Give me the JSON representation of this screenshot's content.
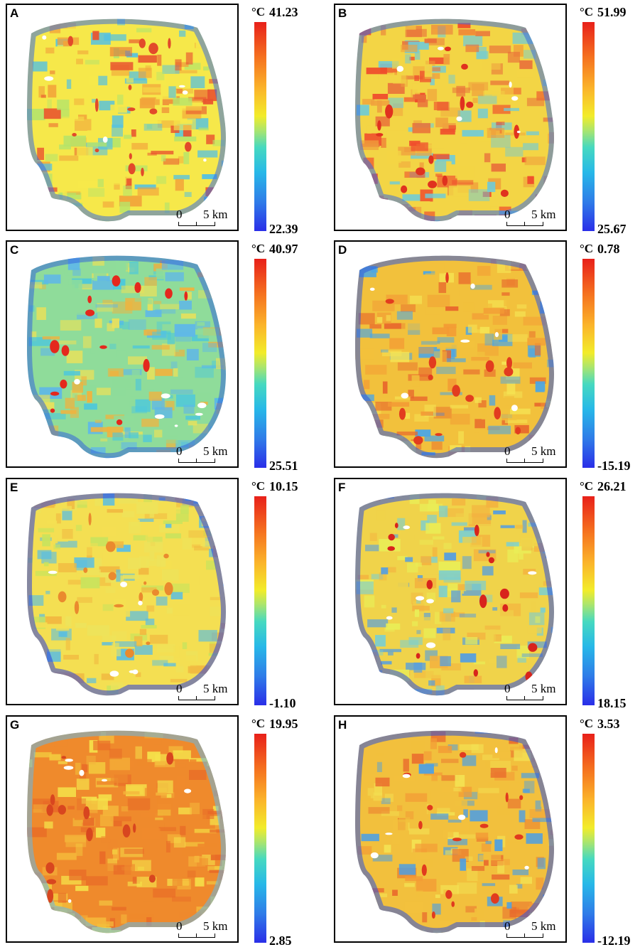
{
  "panels": [
    {
      "letter": "A",
      "unit": "°C",
      "max": "41.23",
      "min": "22.39",
      "scale_zero": "0",
      "scale_km": "5 km",
      "palette": [
        "#f6e84a",
        "#b6e46a",
        "#4fc0e6",
        "#f2a23a",
        "#e9552f"
      ],
      "cold_edge": "#3a6ee0",
      "hot_spot": "#e24a2a"
    },
    {
      "letter": "B",
      "unit": "°C",
      "max": "51.99",
      "min": "25.67",
      "scale_zero": "0",
      "scale_km": "5 km",
      "palette": [
        "#f3d545",
        "#f0a23c",
        "#6fcbd8",
        "#e9703a",
        "#ef4a2c"
      ],
      "cold_edge": "#3a6ee0",
      "hot_spot": "#e0321f"
    },
    {
      "letter": "C",
      "unit": "°C",
      "max": "40.97",
      "min": "25.51",
      "scale_zero": "0",
      "scale_km": "5 km",
      "palette": [
        "#8fdc9a",
        "#4cc7dc",
        "#e9e15a",
        "#5fb7e8",
        "#f2b23c"
      ],
      "cold_edge": "#3566dd",
      "hot_spot": "#e4281d"
    },
    {
      "letter": "D",
      "unit": "°C",
      "max": "0.78",
      "min": "-15.19",
      "scale_zero": "0",
      "scale_km": "5 km",
      "palette": [
        "#f2c13c",
        "#f39a34",
        "#4aa6e6",
        "#f5e353",
        "#e8672c"
      ],
      "cold_edge": "#2f58dc",
      "hot_spot": "#e23c1f"
    },
    {
      "letter": "E",
      "unit": "°C",
      "max": "10.15",
      "min": "-1.10",
      "scale_zero": "0",
      "scale_km": "5 km",
      "palette": [
        "#f4df52",
        "#c9e35c",
        "#58bde4",
        "#f1b840",
        "#ede35b"
      ],
      "cold_edge": "#2a3ee0",
      "hot_spot": "#ea8a2e"
    },
    {
      "letter": "F",
      "unit": "°C",
      "max": "26.21",
      "min": "18.15",
      "scale_zero": "0",
      "scale_km": "5 km",
      "palette": [
        "#f0d34a",
        "#4f9ce6",
        "#f3b33f",
        "#7ccfcf",
        "#e9ee57"
      ],
      "cold_edge": "#2c4fe0",
      "hot_spot": "#d8241c"
    },
    {
      "letter": "G",
      "unit": "°C",
      "max": "19.95",
      "min": "2.85",
      "scale_zero": "0",
      "scale_km": "5 km",
      "palette": [
        "#ef8a2c",
        "#f4b53a",
        "#f5e14a",
        "#e86a27",
        "#f3c93e"
      ],
      "cold_edge": "#66b8e6",
      "hot_spot": "#d8461f"
    },
    {
      "letter": "H",
      "unit": "°C",
      "max": "3.53",
      "min": "-12.19",
      "scale_zero": "0",
      "scale_km": "5 km",
      "palette": [
        "#f2c03d",
        "#f39b35",
        "#4c9fe4",
        "#f3e052",
        "#e96c2d"
      ],
      "cold_edge": "#2d52dc",
      "hot_spot": "#e13a1e"
    }
  ]
}
